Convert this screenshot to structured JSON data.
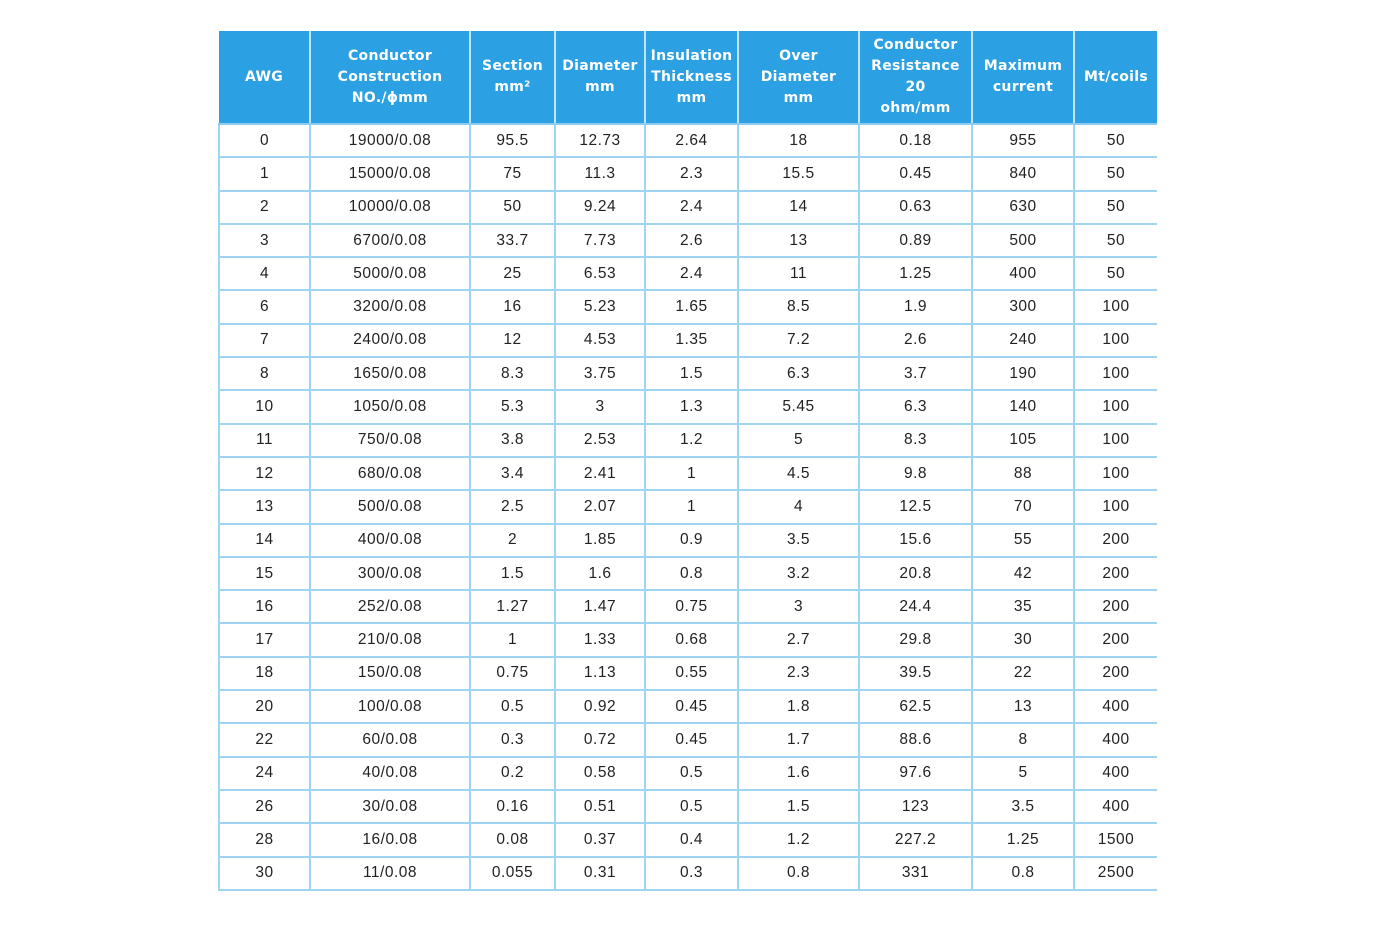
{
  "table": {
    "columns": [
      [
        "AWG"
      ],
      [
        "Conductor",
        "Construction",
        "NO./ϕmm"
      ],
      [
        "Section",
        "mm²"
      ],
      [
        "Diameter",
        "mm"
      ],
      [
        "Insulation",
        "Thickness",
        "mm"
      ],
      [
        "Over Diameter",
        "mm"
      ],
      [
        "Conductor",
        "Resistance 20",
        "ohm/mm"
      ],
      [
        "Maximum",
        "current"
      ],
      [
        "Mt/coils"
      ]
    ],
    "rows": [
      [
        "0",
        "19000/0.08",
        "95.5",
        "12.73",
        "2.64",
        "18",
        "0.18",
        "955",
        "50"
      ],
      [
        "1",
        "15000/0.08",
        "75",
        "11.3",
        "2.3",
        "15.5",
        "0.45",
        "840",
        "50"
      ],
      [
        "2",
        "10000/0.08",
        "50",
        "9.24",
        "2.4",
        "14",
        "0.63",
        "630",
        "50"
      ],
      [
        "3",
        "6700/0.08",
        "33.7",
        "7.73",
        "2.6",
        "13",
        "0.89",
        "500",
        "50"
      ],
      [
        "4",
        "5000/0.08",
        "25",
        "6.53",
        "2.4",
        "11",
        "1.25",
        "400",
        "50"
      ],
      [
        "6",
        "3200/0.08",
        "16",
        "5.23",
        "1.65",
        "8.5",
        "1.9",
        "300",
        "100"
      ],
      [
        "7",
        "2400/0.08",
        "12",
        "4.53",
        "1.35",
        "7.2",
        "2.6",
        "240",
        "100"
      ],
      [
        "8",
        "1650/0.08",
        "8.3",
        "3.75",
        "1.5",
        "6.3",
        "3.7",
        "190",
        "100"
      ],
      [
        "10",
        "1050/0.08",
        "5.3",
        "3",
        "1.3",
        "5.45",
        "6.3",
        "140",
        "100"
      ],
      [
        "11",
        "750/0.08",
        "3.8",
        "2.53",
        "1.2",
        "5",
        "8.3",
        "105",
        "100"
      ],
      [
        "12",
        "680/0.08",
        "3.4",
        "2.41",
        "1",
        "4.5",
        "9.8",
        "88",
        "100"
      ],
      [
        "13",
        "500/0.08",
        "2.5",
        "2.07",
        "1",
        "4",
        "12.5",
        "70",
        "100"
      ],
      [
        "14",
        "400/0.08",
        "2",
        "1.85",
        "0.9",
        "3.5",
        "15.6",
        "55",
        "200"
      ],
      [
        "15",
        "300/0.08",
        "1.5",
        "1.6",
        "0.8",
        "3.2",
        "20.8",
        "42",
        "200"
      ],
      [
        "16",
        "252/0.08",
        "1.27",
        "1.47",
        "0.75",
        "3",
        "24.4",
        "35",
        "200"
      ],
      [
        "17",
        "210/0.08",
        "1",
        "1.33",
        "0.68",
        "2.7",
        "29.8",
        "30",
        "200"
      ],
      [
        "18",
        "150/0.08",
        "0.75",
        "1.13",
        "0.55",
        "2.3",
        "39.5",
        "22",
        "200"
      ],
      [
        "20",
        "100/0.08",
        "0.5",
        "0.92",
        "0.45",
        "1.8",
        "62.5",
        "13",
        "400"
      ],
      [
        "22",
        "60/0.08",
        "0.3",
        "0.72",
        "0.45",
        "1.7",
        "88.6",
        "8",
        "400"
      ],
      [
        "24",
        "40/0.08",
        "0.2",
        "0.58",
        "0.5",
        "1.6",
        "97.6",
        "5",
        "400"
      ],
      [
        "26",
        "30/0.08",
        "0.16",
        "0.51",
        "0.5",
        "1.5",
        "123",
        "3.5",
        "400"
      ],
      [
        "28",
        "16/0.08",
        "0.08",
        "0.37",
        "0.4",
        "1.2",
        "227.2",
        "1.25",
        "1500"
      ],
      [
        "30",
        "11/0.08",
        "0.055",
        "0.31",
        "0.3",
        "0.8",
        "331",
        "0.8",
        "2500"
      ]
    ]
  }
}
